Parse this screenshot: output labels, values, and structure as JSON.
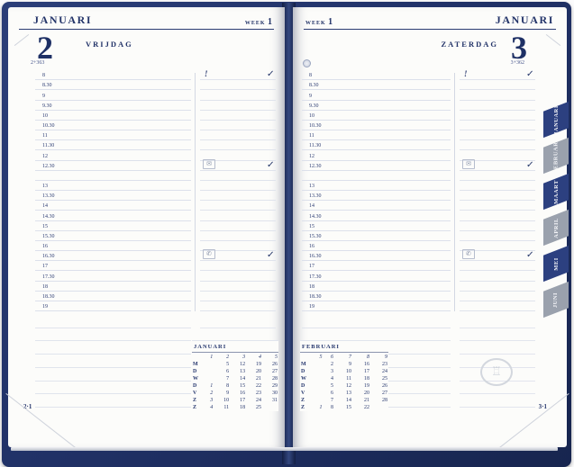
{
  "cover_color": "#22336a",
  "icons": {
    "alert": "!",
    "mail": "✉",
    "phone": "✆",
    "check": "✓",
    "moon": "○",
    "emblem": "♖"
  },
  "tabs": [
    {
      "label": "JANUARI",
      "color": "navy"
    },
    {
      "label": "FEBRUARI",
      "color": "gray"
    },
    {
      "label": "MAART",
      "color": "navy"
    },
    {
      "label": "APRIL",
      "color": "gray"
    },
    {
      "label": "MEI",
      "color": "navy"
    },
    {
      "label": "JUNI",
      "color": "gray"
    }
  ],
  "left_page": {
    "month": "JANUARI",
    "week_label": "WEEK",
    "week_number": "1",
    "day_number": "2",
    "day_name": "VRIJDAG",
    "day_counter": "2+363",
    "footer": "2·1",
    "times": [
      "8",
      "8.30",
      "9",
      "9.30",
      "10",
      "10.30",
      "11",
      "11.30",
      "12",
      "12.30",
      "",
      "13",
      "13.30",
      "14",
      "14.30",
      "15",
      "15.30",
      "16",
      "16.30",
      "17",
      "17.30",
      "18",
      "18.30",
      "19"
    ],
    "markers": {
      "8": {
        "left": "alert",
        "check": true
      },
      "12.30": {
        "left": "mail",
        "check": true
      },
      "16.30": {
        "left": "phone",
        "check": true
      }
    },
    "mini_calendar": {
      "title": "JANUARI",
      "week_numbers": [
        "1",
        "2",
        "3",
        "4",
        "5"
      ],
      "rows": [
        {
          "day": "M",
          "dates": [
            "",
            "5",
            "12",
            "19",
            "26"
          ]
        },
        {
          "day": "D",
          "dates": [
            "",
            "6",
            "13",
            "20",
            "27"
          ]
        },
        {
          "day": "W",
          "dates": [
            "",
            "7",
            "14",
            "21",
            "28"
          ]
        },
        {
          "day": "D",
          "dates": [
            "1",
            "8",
            "15",
            "22",
            "29"
          ]
        },
        {
          "day": "V",
          "dates": [
            "2",
            "9",
            "16",
            "23",
            "30"
          ]
        },
        {
          "day": "Z",
          "dates": [
            "3",
            "10",
            "17",
            "24",
            "31"
          ]
        },
        {
          "day": "Z",
          "dates": [
            "4",
            "11",
            "18",
            "25",
            ""
          ]
        }
      ]
    }
  },
  "right_page": {
    "month": "JANUARI",
    "week_label": "WEEK",
    "week_number": "1",
    "day_number": "3",
    "day_name": "ZATERDAG",
    "day_counter": "3+362",
    "footer": "3·1",
    "times": [
      "8",
      "8.30",
      "9",
      "9.30",
      "10",
      "10.30",
      "11",
      "11.30",
      "12",
      "12.30",
      "",
      "13",
      "13.30",
      "14",
      "14.30",
      "15",
      "15.30",
      "16",
      "16.30",
      "17",
      "17.30",
      "18",
      "18.30",
      "19"
    ],
    "markers": {
      "8": {
        "left": "alert",
        "check": true
      },
      "12.30": {
        "left": "mail",
        "check": true
      },
      "16.30": {
        "left": "phone",
        "check": true
      }
    },
    "mini_calendar": {
      "title": "FEBRUARI",
      "week_numbers": [
        "5",
        "6",
        "7",
        "8",
        "9"
      ],
      "rows": [
        {
          "day": "M",
          "dates": [
            "",
            "2",
            "9",
            "16",
            "23"
          ]
        },
        {
          "day": "D",
          "dates": [
            "",
            "3",
            "10",
            "17",
            "24"
          ]
        },
        {
          "day": "W",
          "dates": [
            "",
            "4",
            "11",
            "18",
            "25"
          ]
        },
        {
          "day": "D",
          "dates": [
            "",
            "5",
            "12",
            "19",
            "26"
          ]
        },
        {
          "day": "V",
          "dates": [
            "",
            "6",
            "13",
            "20",
            "27"
          ]
        },
        {
          "day": "Z",
          "dates": [
            "",
            "7",
            "14",
            "21",
            "28"
          ]
        },
        {
          "day": "Z",
          "dates": [
            "1",
            "8",
            "15",
            "22",
            ""
          ]
        }
      ]
    }
  }
}
